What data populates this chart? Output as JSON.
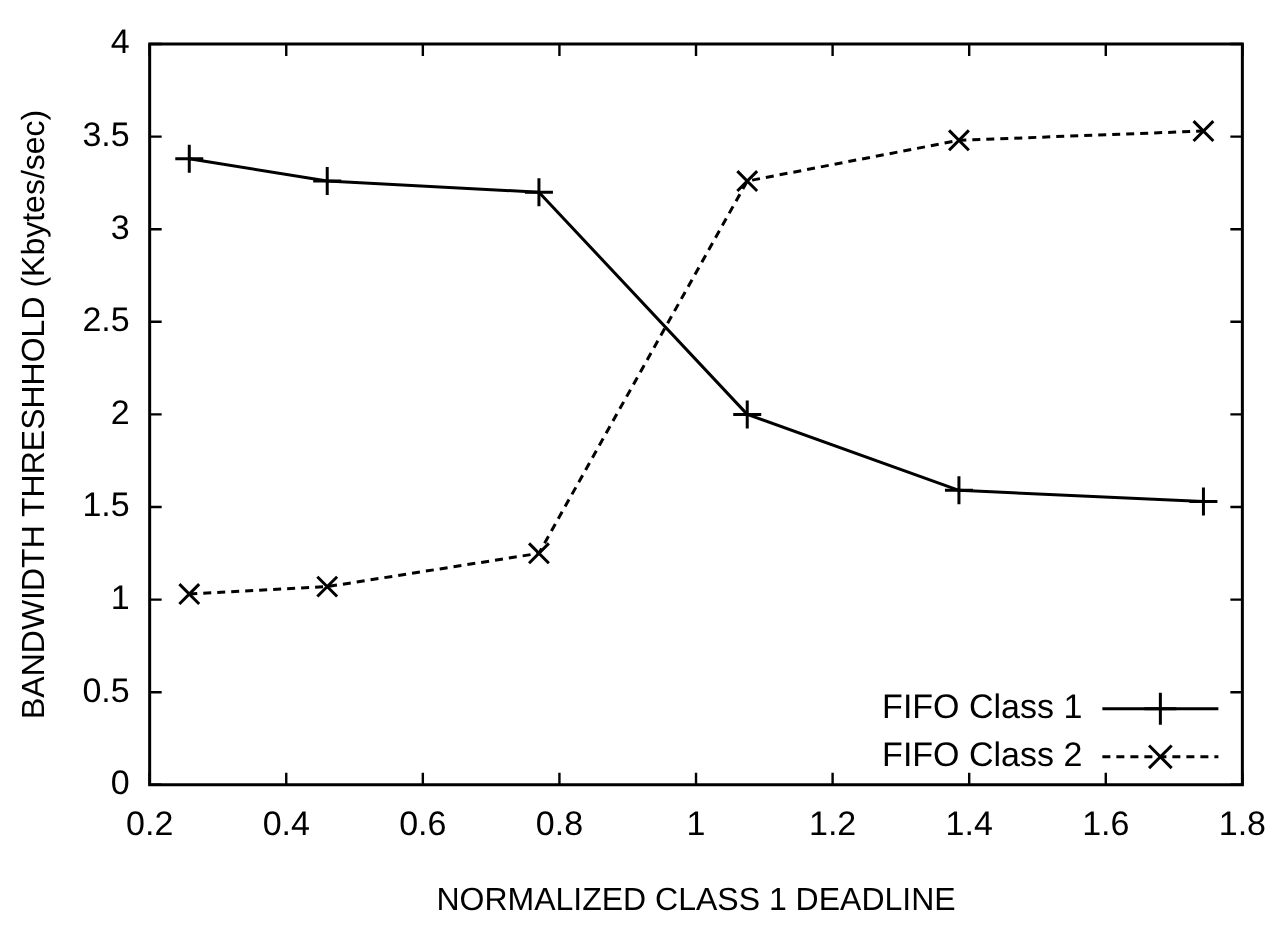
{
  "chart_data": {
    "type": "line",
    "xlabel": "NORMALIZED CLASS 1 DEADLINE",
    "ylabel": "BANDWIDTH THRESHHOLD (Kbytes/sec)",
    "x": [
      0.258,
      0.46,
      0.77,
      1.075,
      1.385,
      1.743
    ],
    "series": [
      {
        "name": "FIFO Class 1",
        "color": "#000000",
        "values": [
          3.38,
          3.26,
          3.2,
          2.0,
          1.59,
          1.53
        ],
        "marker": "cross",
        "line_style": "solid"
      },
      {
        "name": "FIFO Class 2",
        "color": "#000000",
        "values": [
          1.03,
          1.07,
          1.25,
          3.26,
          3.48,
          3.53
        ],
        "marker": "x",
        "line_style": "dashed"
      }
    ],
    "xlim": [
      0.2,
      1.8
    ],
    "xticks": [
      0.2,
      0.4,
      0.6,
      0.8,
      1,
      1.2,
      1.4,
      1.6,
      1.8
    ],
    "ylim": [
      0,
      4
    ],
    "yticks": [
      0,
      0.5,
      1,
      1.5,
      2,
      2.5,
      3,
      3.5,
      4
    ],
    "grid": false,
    "legend": "bottom right"
  }
}
